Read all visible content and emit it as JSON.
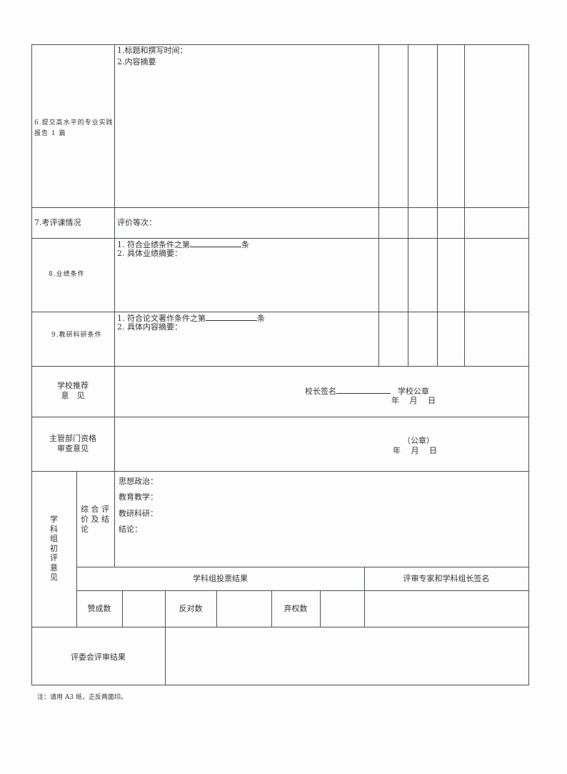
{
  "rows": {
    "r6": {
      "label_line1": "6.提交高水平的专业实践",
      "label_line2": "报告 1 篇",
      "item1": "1.标题和撰写时间：",
      "item2": "2.内容摘要"
    },
    "r7": {
      "label": "7.考评课情况",
      "content": "评价等次："
    },
    "r8": {
      "label": "8.业绩条件",
      "item1_pre": "1. 符合业绩条件之第",
      "item1_post": "条",
      "item2": "2. 具体业绩摘要："
    },
    "r9": {
      "label": "9.教研科研条件",
      "item1_pre": "1. 符合论文著作条件之第",
      "item1_post": "条",
      "item2": "2. 具体内容摘要："
    }
  },
  "school": {
    "label_line1": "学校推荐",
    "label_line2": "意　见",
    "signature": "校长签名",
    "seal": "学校公章",
    "date": "年　 月　 日"
  },
  "dept": {
    "label_line1": "主管部门资格",
    "label_line2": "审查意见",
    "seal": "（公章）",
    "date": "年　 月　 日"
  },
  "group": {
    "label": "学科组初评意见",
    "sub_label_line1": "综 合 评",
    "sub_label_line2": "价 及 结",
    "sub_label_line3": "论",
    "items": [
      "思想政治：",
      "教育教学：",
      "教研科研：",
      "结论："
    ],
    "vote_header": "学科组投票结果",
    "sign_header": "评审专家和学科组长签名",
    "approve": "赞成数",
    "oppose": "反对数",
    "abstain": "弃权数"
  },
  "committee": {
    "label": "评委会评审结果"
  },
  "note": "注：请用 A3 纸，正反两面印。"
}
